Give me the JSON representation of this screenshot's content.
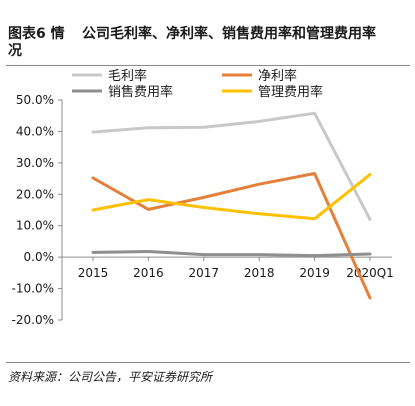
{
  "header": {
    "figure_label": "图表6 情况",
    "title": "公司毛利率、净利率、销售费用率和管理费用率"
  },
  "source": "资料来源：公司公告，平安证券研究所",
  "chart_data": {
    "type": "line",
    "categories": [
      "2015",
      "2016",
      "2017",
      "2018",
      "2019",
      "2020Q1"
    ],
    "series": [
      {
        "name": "毛利率",
        "color": "#c8c8c8",
        "values": [
          39.8,
          41.2,
          41.3,
          43.2,
          45.8,
          12.0
        ]
      },
      {
        "name": "净利率",
        "color": "#e5803a",
        "values": [
          25.2,
          15.2,
          19.0,
          23.2,
          26.6,
          -13.0
        ]
      },
      {
        "name": "销售费用率",
        "color": "#8f8f8f",
        "values": [
          1.5,
          1.8,
          0.8,
          0.8,
          0.5,
          1.0
        ]
      },
      {
        "name": "管理费用率",
        "color": "#ffc000",
        "values": [
          15.0,
          18.3,
          15.8,
          13.8,
          12.2,
          26.3
        ]
      }
    ],
    "yticks": [
      "50.0%",
      "40.0%",
      "30.0%",
      "20.0%",
      "10.0%",
      "0.0%",
      "-10.0%",
      "-20.0%"
    ],
    "ylim": [
      -20,
      50
    ],
    "grid": false,
    "legend": "top"
  }
}
